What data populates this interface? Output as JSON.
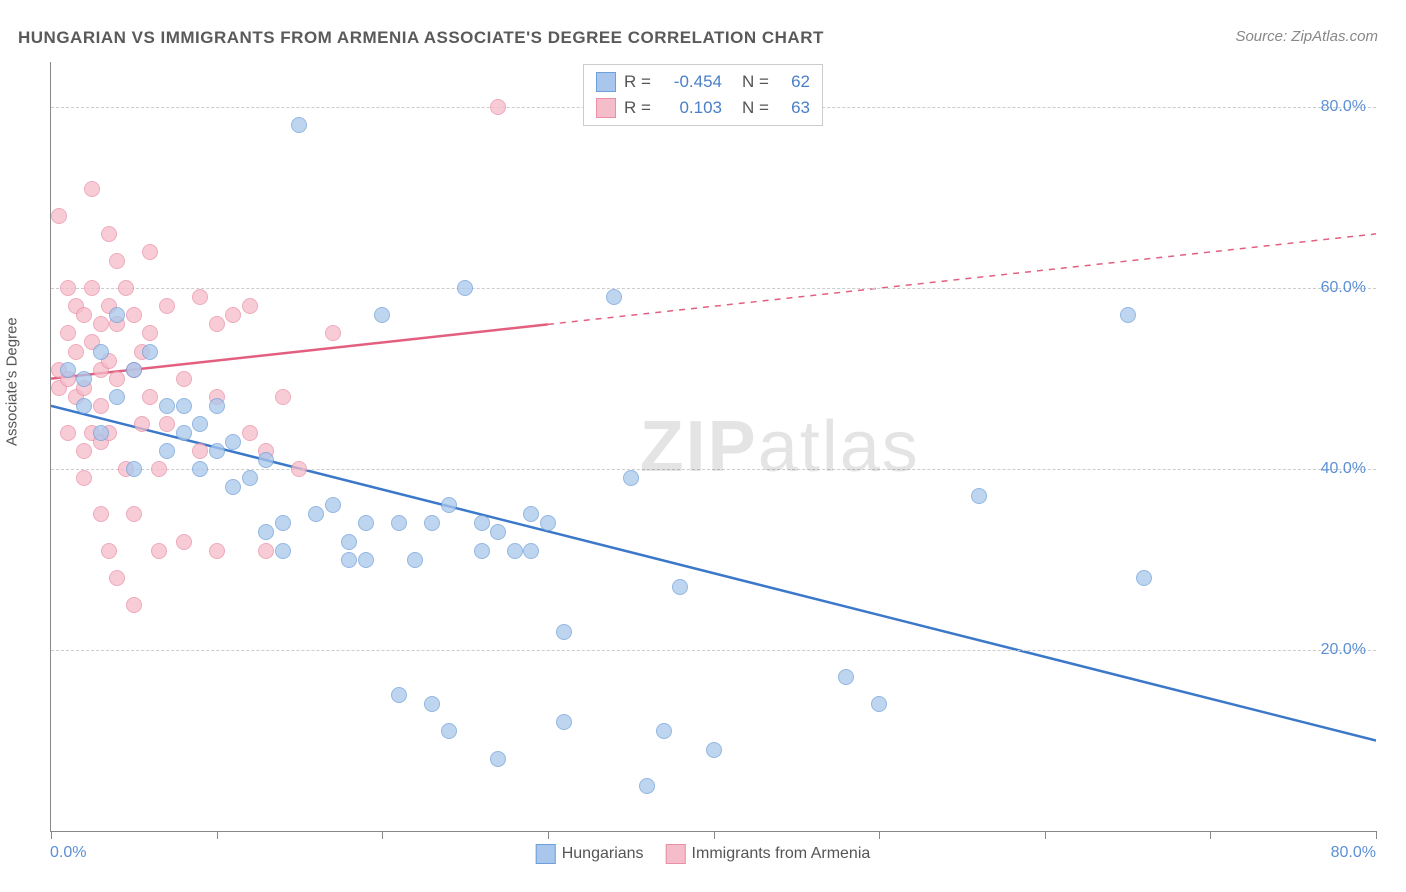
{
  "title": "HUNGARIAN VS IMMIGRANTS FROM ARMENIA ASSOCIATE'S DEGREE CORRELATION CHART",
  "source": "Source: ZipAtlas.com",
  "watermark_bold": "ZIP",
  "watermark_light": "atlas",
  "chart": {
    "type": "scatter",
    "ylabel": "Associate's Degree",
    "xlim": [
      0,
      80
    ],
    "ylim": [
      0,
      85
    ],
    "x_ticks": [
      0,
      10,
      20,
      30,
      40,
      50,
      60,
      70,
      80
    ],
    "x_tick_labels_shown": {
      "0": "0.0%",
      "80": "80.0%"
    },
    "y_gridlines": [
      20,
      40,
      60,
      80
    ],
    "y_tick_labels": {
      "20": "20.0%",
      "40": "40.0%",
      "60": "60.0%",
      "80": "80.0%"
    },
    "grid_color": "#cccccc",
    "axis_color": "#888888",
    "background_color": "#ffffff",
    "marker_radius": 8,
    "marker_opacity": 0.75,
    "series": [
      {
        "name": "Hungarians",
        "fill_color": "#a9c7ec",
        "stroke_color": "#6f9fd8",
        "trend_color": "#3b78c9",
        "trend_width": 2.5,
        "R": "-0.454",
        "N": "62",
        "trend": {
          "x1": 0,
          "y1": 47,
          "x2": 80,
          "y2": 10,
          "dashed_from_x": null
        },
        "points": [
          [
            1,
            51
          ],
          [
            2,
            50
          ],
          [
            2,
            47
          ],
          [
            3,
            53
          ],
          [
            3,
            44
          ],
          [
            4,
            48
          ],
          [
            4,
            57
          ],
          [
            5,
            51
          ],
          [
            5,
            40
          ],
          [
            6,
            53
          ],
          [
            7,
            47
          ],
          [
            7,
            42
          ],
          [
            8,
            47
          ],
          [
            8,
            44
          ],
          [
            9,
            45
          ],
          [
            9,
            40
          ],
          [
            10,
            47
          ],
          [
            10,
            42
          ],
          [
            11,
            43
          ],
          [
            11,
            38
          ],
          [
            12,
            39
          ],
          [
            13,
            41
          ],
          [
            13,
            33
          ],
          [
            14,
            31
          ],
          [
            14,
            34
          ],
          [
            15,
            78
          ],
          [
            16,
            35
          ],
          [
            17,
            36
          ],
          [
            18,
            32
          ],
          [
            18,
            30
          ],
          [
            19,
            34
          ],
          [
            19,
            30
          ],
          [
            20,
            57
          ],
          [
            21,
            34
          ],
          [
            21,
            15
          ],
          [
            22,
            30
          ],
          [
            23,
            34
          ],
          [
            23,
            14
          ],
          [
            24,
            36
          ],
          [
            24,
            11
          ],
          [
            25,
            60
          ],
          [
            26,
            31
          ],
          [
            26,
            34
          ],
          [
            27,
            33
          ],
          [
            27,
            8
          ],
          [
            28,
            31
          ],
          [
            29,
            31
          ],
          [
            29,
            35
          ],
          [
            30,
            34
          ],
          [
            31,
            22
          ],
          [
            31,
            12
          ],
          [
            34,
            59
          ],
          [
            35,
            39
          ],
          [
            36,
            5
          ],
          [
            37,
            11
          ],
          [
            38,
            27
          ],
          [
            40,
            9
          ],
          [
            48,
            17
          ],
          [
            50,
            14
          ],
          [
            56,
            37
          ],
          [
            65,
            57
          ],
          [
            66,
            28
          ]
        ]
      },
      {
        "name": "Immigrants from Armenia",
        "fill_color": "#f5bcc9",
        "stroke_color": "#e98fa6",
        "trend_color": "#e35f7f",
        "trend_width": 2.5,
        "R": "0.103",
        "N": "63",
        "trend": {
          "x1": 0,
          "y1": 50,
          "x2": 80,
          "y2": 66,
          "dashed_from_x": 30
        },
        "points": [
          [
            0.5,
            68
          ],
          [
            0.5,
            51
          ],
          [
            0.5,
            49
          ],
          [
            1,
            60
          ],
          [
            1,
            55
          ],
          [
            1,
            50
          ],
          [
            1,
            44
          ],
          [
            1.5,
            58
          ],
          [
            1.5,
            53
          ],
          [
            1.5,
            48
          ],
          [
            2,
            57
          ],
          [
            2,
            49
          ],
          [
            2,
            42
          ],
          [
            2,
            39
          ],
          [
            2.5,
            71
          ],
          [
            2.5,
            60
          ],
          [
            2.5,
            54
          ],
          [
            2.5,
            44
          ],
          [
            3,
            56
          ],
          [
            3,
            51
          ],
          [
            3,
            47
          ],
          [
            3,
            43
          ],
          [
            3,
            35
          ],
          [
            3.5,
            66
          ],
          [
            3.5,
            58
          ],
          [
            3.5,
            52
          ],
          [
            3.5,
            44
          ],
          [
            3.5,
            31
          ],
          [
            4,
            63
          ],
          [
            4,
            56
          ],
          [
            4,
            50
          ],
          [
            4,
            28
          ],
          [
            4.5,
            60
          ],
          [
            4.5,
            40
          ],
          [
            5,
            57
          ],
          [
            5,
            51
          ],
          [
            5,
            35
          ],
          [
            5,
            25
          ],
          [
            5.5,
            53
          ],
          [
            5.5,
            45
          ],
          [
            6,
            64
          ],
          [
            6,
            55
          ],
          [
            6,
            48
          ],
          [
            6.5,
            40
          ],
          [
            6.5,
            31
          ],
          [
            7,
            58
          ],
          [
            7,
            45
          ],
          [
            8,
            50
          ],
          [
            8,
            32
          ],
          [
            9,
            59
          ],
          [
            9,
            42
          ],
          [
            10,
            56
          ],
          [
            10,
            48
          ],
          [
            10,
            31
          ],
          [
            11,
            57
          ],
          [
            12,
            58
          ],
          [
            12,
            44
          ],
          [
            13,
            42
          ],
          [
            13,
            31
          ],
          [
            14,
            48
          ],
          [
            15,
            40
          ],
          [
            17,
            55
          ],
          [
            27,
            80
          ]
        ]
      }
    ]
  },
  "legend_top": {
    "labels": {
      "R": "R =",
      "N": "N ="
    }
  },
  "legend_bottom": {
    "items": [
      "Hungarians",
      "Immigrants from Armenia"
    ]
  }
}
